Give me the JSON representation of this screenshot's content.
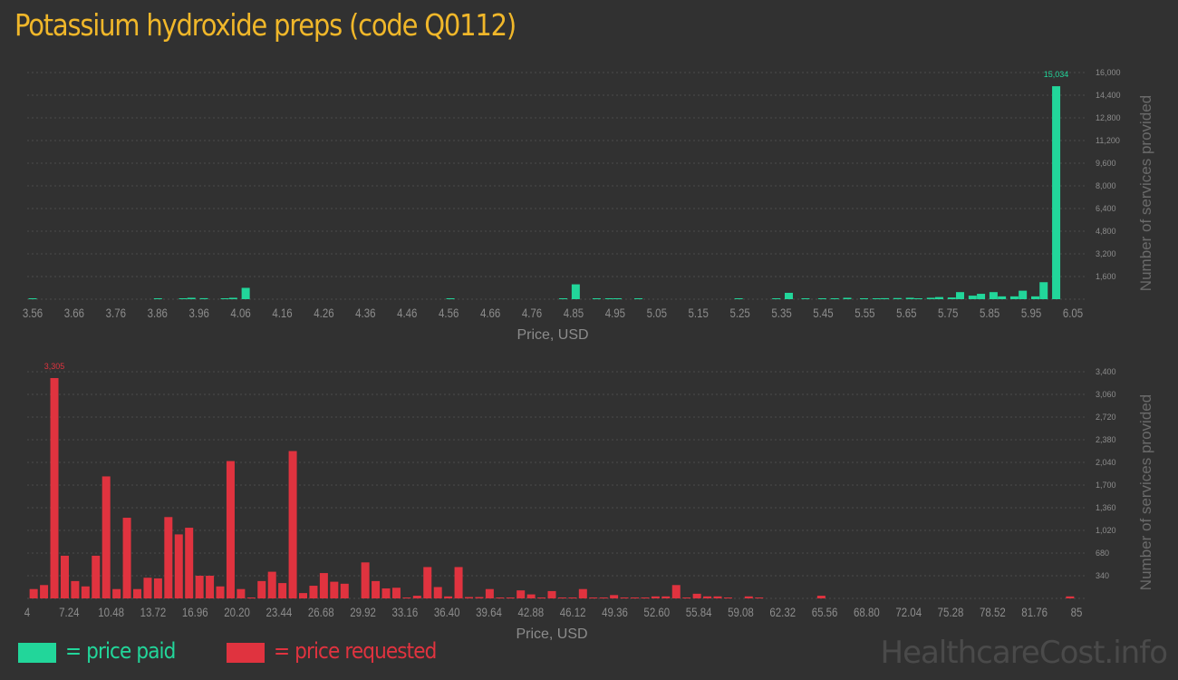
{
  "title": "Potassium hydroxide preps (code Q0112)",
  "colors": {
    "background": "#313131",
    "grid": "#4b4b4b",
    "axis_text": "#8c8c8c",
    "title": "#f0b72a",
    "paid": "#22d69a",
    "requested": "#e0333f"
  },
  "legend": {
    "paid_label": "= price paid",
    "requested_label": "= price requested"
  },
  "watermark": "HealthcareCost.info",
  "chart_data": [
    {
      "type": "bar",
      "name": "price-paid-histogram",
      "color": "#22d69a",
      "xlabel": "Price, USD",
      "ylabel": "Number of services provided",
      "xlim": [
        3.56,
        6.05
      ],
      "ylim": [
        0,
        16000
      ],
      "x_ticks": [
        "3.56",
        "3.66",
        "3.76",
        "3.86",
        "3.96",
        "4.06",
        "4.16",
        "4.26",
        "4.36",
        "4.46",
        "4.56",
        "4.66",
        "4.76",
        "4.85",
        "4.95",
        "5.05",
        "5.15",
        "5.25",
        "5.35",
        "5.45",
        "5.55",
        "5.65",
        "5.75",
        "5.85",
        "5.95",
        "6.05"
      ],
      "y_ticks": [
        "1,600",
        "3,200",
        "4,800",
        "6,400",
        "8,000",
        "9,600",
        "11,200",
        "12,800",
        "14,400",
        "16,000"
      ],
      "y_tick_values": [
        1600,
        3200,
        4800,
        6400,
        8000,
        9600,
        11200,
        12800,
        14400,
        16000
      ],
      "peak_label": "15,034",
      "bars": [
        {
          "x": 3.56,
          "y": 60
        },
        {
          "x": 3.86,
          "y": 50
        },
        {
          "x": 3.92,
          "y": 60
        },
        {
          "x": 3.94,
          "y": 100
        },
        {
          "x": 3.97,
          "y": 70
        },
        {
          "x": 4.02,
          "y": 60
        },
        {
          "x": 4.04,
          "y": 100
        },
        {
          "x": 4.07,
          "y": 800
        },
        {
          "x": 4.56,
          "y": 50
        },
        {
          "x": 4.83,
          "y": 30
        },
        {
          "x": 4.86,
          "y": 1050
        },
        {
          "x": 4.91,
          "y": 60
        },
        {
          "x": 4.94,
          "y": 50
        },
        {
          "x": 4.96,
          "y": 40
        },
        {
          "x": 5.01,
          "y": 40
        },
        {
          "x": 5.25,
          "y": 40
        },
        {
          "x": 5.34,
          "y": 50
        },
        {
          "x": 5.37,
          "y": 450
        },
        {
          "x": 5.41,
          "y": 40
        },
        {
          "x": 5.45,
          "y": 60
        },
        {
          "x": 5.48,
          "y": 60
        },
        {
          "x": 5.51,
          "y": 100
        },
        {
          "x": 5.55,
          "y": 40
        },
        {
          "x": 5.58,
          "y": 60
        },
        {
          "x": 5.6,
          "y": 70
        },
        {
          "x": 5.63,
          "y": 80
        },
        {
          "x": 5.66,
          "y": 100
        },
        {
          "x": 5.68,
          "y": 60
        },
        {
          "x": 5.71,
          "y": 100
        },
        {
          "x": 5.73,
          "y": 150
        },
        {
          "x": 5.76,
          "y": 120
        },
        {
          "x": 5.78,
          "y": 500
        },
        {
          "x": 5.81,
          "y": 250
        },
        {
          "x": 5.83,
          "y": 380
        },
        {
          "x": 5.86,
          "y": 500
        },
        {
          "x": 5.88,
          "y": 200
        },
        {
          "x": 5.91,
          "y": 200
        },
        {
          "x": 5.93,
          "y": 600
        },
        {
          "x": 5.96,
          "y": 200
        },
        {
          "x": 5.98,
          "y": 1200
        },
        {
          "x": 6.01,
          "y": 15034
        }
      ]
    },
    {
      "type": "bar",
      "name": "price-requested-histogram",
      "color": "#e0333f",
      "xlabel": "Price, USD",
      "ylabel": "Number of services provided",
      "xlim": [
        4,
        85
      ],
      "ylim": [
        0,
        3400
      ],
      "x_ticks": [
        "4",
        "7.24",
        "10.48",
        "13.72",
        "16.96",
        "20.20",
        "23.44",
        "26.68",
        "29.92",
        "33.16",
        "36.40",
        "39.64",
        "42.88",
        "46.12",
        "49.36",
        "52.60",
        "55.84",
        "59.08",
        "62.32",
        "65.56",
        "68.80",
        "72.04",
        "75.28",
        "78.52",
        "81.76",
        "85"
      ],
      "y_ticks": [
        "340",
        "680",
        "1,020",
        "1,360",
        "1,700",
        "2,040",
        "2,380",
        "2,720",
        "3,060",
        "3,400"
      ],
      "y_tick_values": [
        340,
        680,
        1020,
        1360,
        1700,
        2040,
        2380,
        2720,
        3060,
        3400
      ],
      "peak_label": "3,305",
      "bars": [
        {
          "x": 4.5,
          "y": 140
        },
        {
          "x": 5.3,
          "y": 200
        },
        {
          "x": 6.1,
          "y": 3305
        },
        {
          "x": 6.9,
          "y": 640
        },
        {
          "x": 7.7,
          "y": 260
        },
        {
          "x": 8.5,
          "y": 180
        },
        {
          "x": 9.3,
          "y": 640
        },
        {
          "x": 10.1,
          "y": 1830
        },
        {
          "x": 10.9,
          "y": 140
        },
        {
          "x": 11.7,
          "y": 1210
        },
        {
          "x": 12.5,
          "y": 140
        },
        {
          "x": 13.3,
          "y": 310
        },
        {
          "x": 14.1,
          "y": 300
        },
        {
          "x": 14.9,
          "y": 1220
        },
        {
          "x": 15.7,
          "y": 960
        },
        {
          "x": 16.5,
          "y": 1060
        },
        {
          "x": 17.3,
          "y": 340
        },
        {
          "x": 18.1,
          "y": 340
        },
        {
          "x": 18.9,
          "y": 180
        },
        {
          "x": 19.7,
          "y": 2060
        },
        {
          "x": 20.5,
          "y": 140
        },
        {
          "x": 21.3,
          "y": 10
        },
        {
          "x": 22.1,
          "y": 260
        },
        {
          "x": 22.9,
          "y": 400
        },
        {
          "x": 23.7,
          "y": 230
        },
        {
          "x": 24.5,
          "y": 2210
        },
        {
          "x": 25.3,
          "y": 80
        },
        {
          "x": 26.1,
          "y": 190
        },
        {
          "x": 26.9,
          "y": 380
        },
        {
          "x": 27.7,
          "y": 250
        },
        {
          "x": 28.5,
          "y": 220
        },
        {
          "x": 30.1,
          "y": 540
        },
        {
          "x": 30.9,
          "y": 260
        },
        {
          "x": 31.7,
          "y": 150
        },
        {
          "x": 32.5,
          "y": 160
        },
        {
          "x": 33.3,
          "y": 10
        },
        {
          "x": 34.1,
          "y": 40
        },
        {
          "x": 34.9,
          "y": 470
        },
        {
          "x": 35.7,
          "y": 170
        },
        {
          "x": 36.5,
          "y": 30
        },
        {
          "x": 37.3,
          "y": 470
        },
        {
          "x": 38.1,
          "y": 20
        },
        {
          "x": 38.9,
          "y": 20
        },
        {
          "x": 39.7,
          "y": 140
        },
        {
          "x": 40.5,
          "y": 10
        },
        {
          "x": 41.3,
          "y": 10
        },
        {
          "x": 42.1,
          "y": 120
        },
        {
          "x": 42.9,
          "y": 60
        },
        {
          "x": 43.7,
          "y": 10
        },
        {
          "x": 44.5,
          "y": 110
        },
        {
          "x": 45.3,
          "y": 10
        },
        {
          "x": 46.1,
          "y": 10
        },
        {
          "x": 46.9,
          "y": 140
        },
        {
          "x": 47.7,
          "y": 10
        },
        {
          "x": 48.5,
          "y": 10
        },
        {
          "x": 49.3,
          "y": 50
        },
        {
          "x": 50.1,
          "y": 10
        },
        {
          "x": 50.9,
          "y": 10
        },
        {
          "x": 51.7,
          "y": 10
        },
        {
          "x": 52.5,
          "y": 30
        },
        {
          "x": 53.3,
          "y": 30
        },
        {
          "x": 54.1,
          "y": 200
        },
        {
          "x": 54.9,
          "y": 10
        },
        {
          "x": 55.7,
          "y": 70
        },
        {
          "x": 56.5,
          "y": 30
        },
        {
          "x": 57.3,
          "y": 30
        },
        {
          "x": 58.1,
          "y": 10
        },
        {
          "x": 59.7,
          "y": 30
        },
        {
          "x": 60.5,
          "y": 10
        },
        {
          "x": 65.3,
          "y": 40
        },
        {
          "x": 84.5,
          "y": 30
        }
      ]
    }
  ]
}
